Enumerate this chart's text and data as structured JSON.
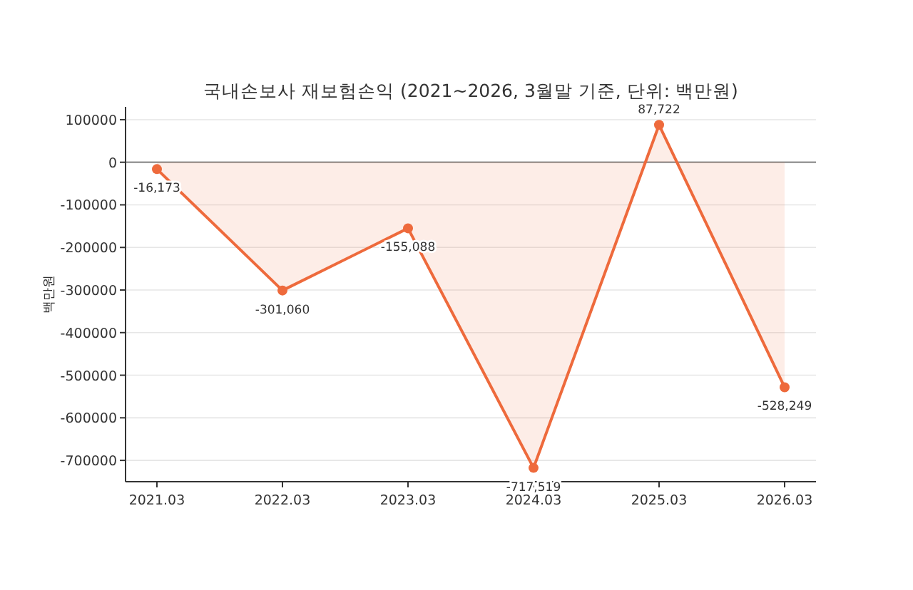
{
  "chart_data": {
    "type": "area",
    "title": "국내손보사 재보험손익 (2021~2026, 3월말 기준, 단위: 백만원)",
    "ylabel": "백만원",
    "categories": [
      "2021.03",
      "2022.03",
      "2023.03",
      "2024.03",
      "2025.03",
      "2026.03"
    ],
    "series": [
      {
        "color": "#ee6a3c",
        "values": [
          -16173,
          -301060,
          -155088,
          -717519,
          87722,
          -528249
        ],
        "value_labels": [
          "-16,173",
          "-301,060",
          "-155,088",
          "-717,519",
          "87,722",
          "-528,249"
        ]
      }
    ],
    "ylim": [
      -750000,
      130000
    ],
    "yticks": [
      100000,
      0,
      -100000,
      -200000,
      -300000,
      -400000,
      -500000,
      -600000,
      -700000
    ],
    "grid": "y",
    "marker": "circle",
    "ref_lines": [
      {
        "axis": "y",
        "value": 0,
        "color": "#999999"
      }
    ]
  }
}
